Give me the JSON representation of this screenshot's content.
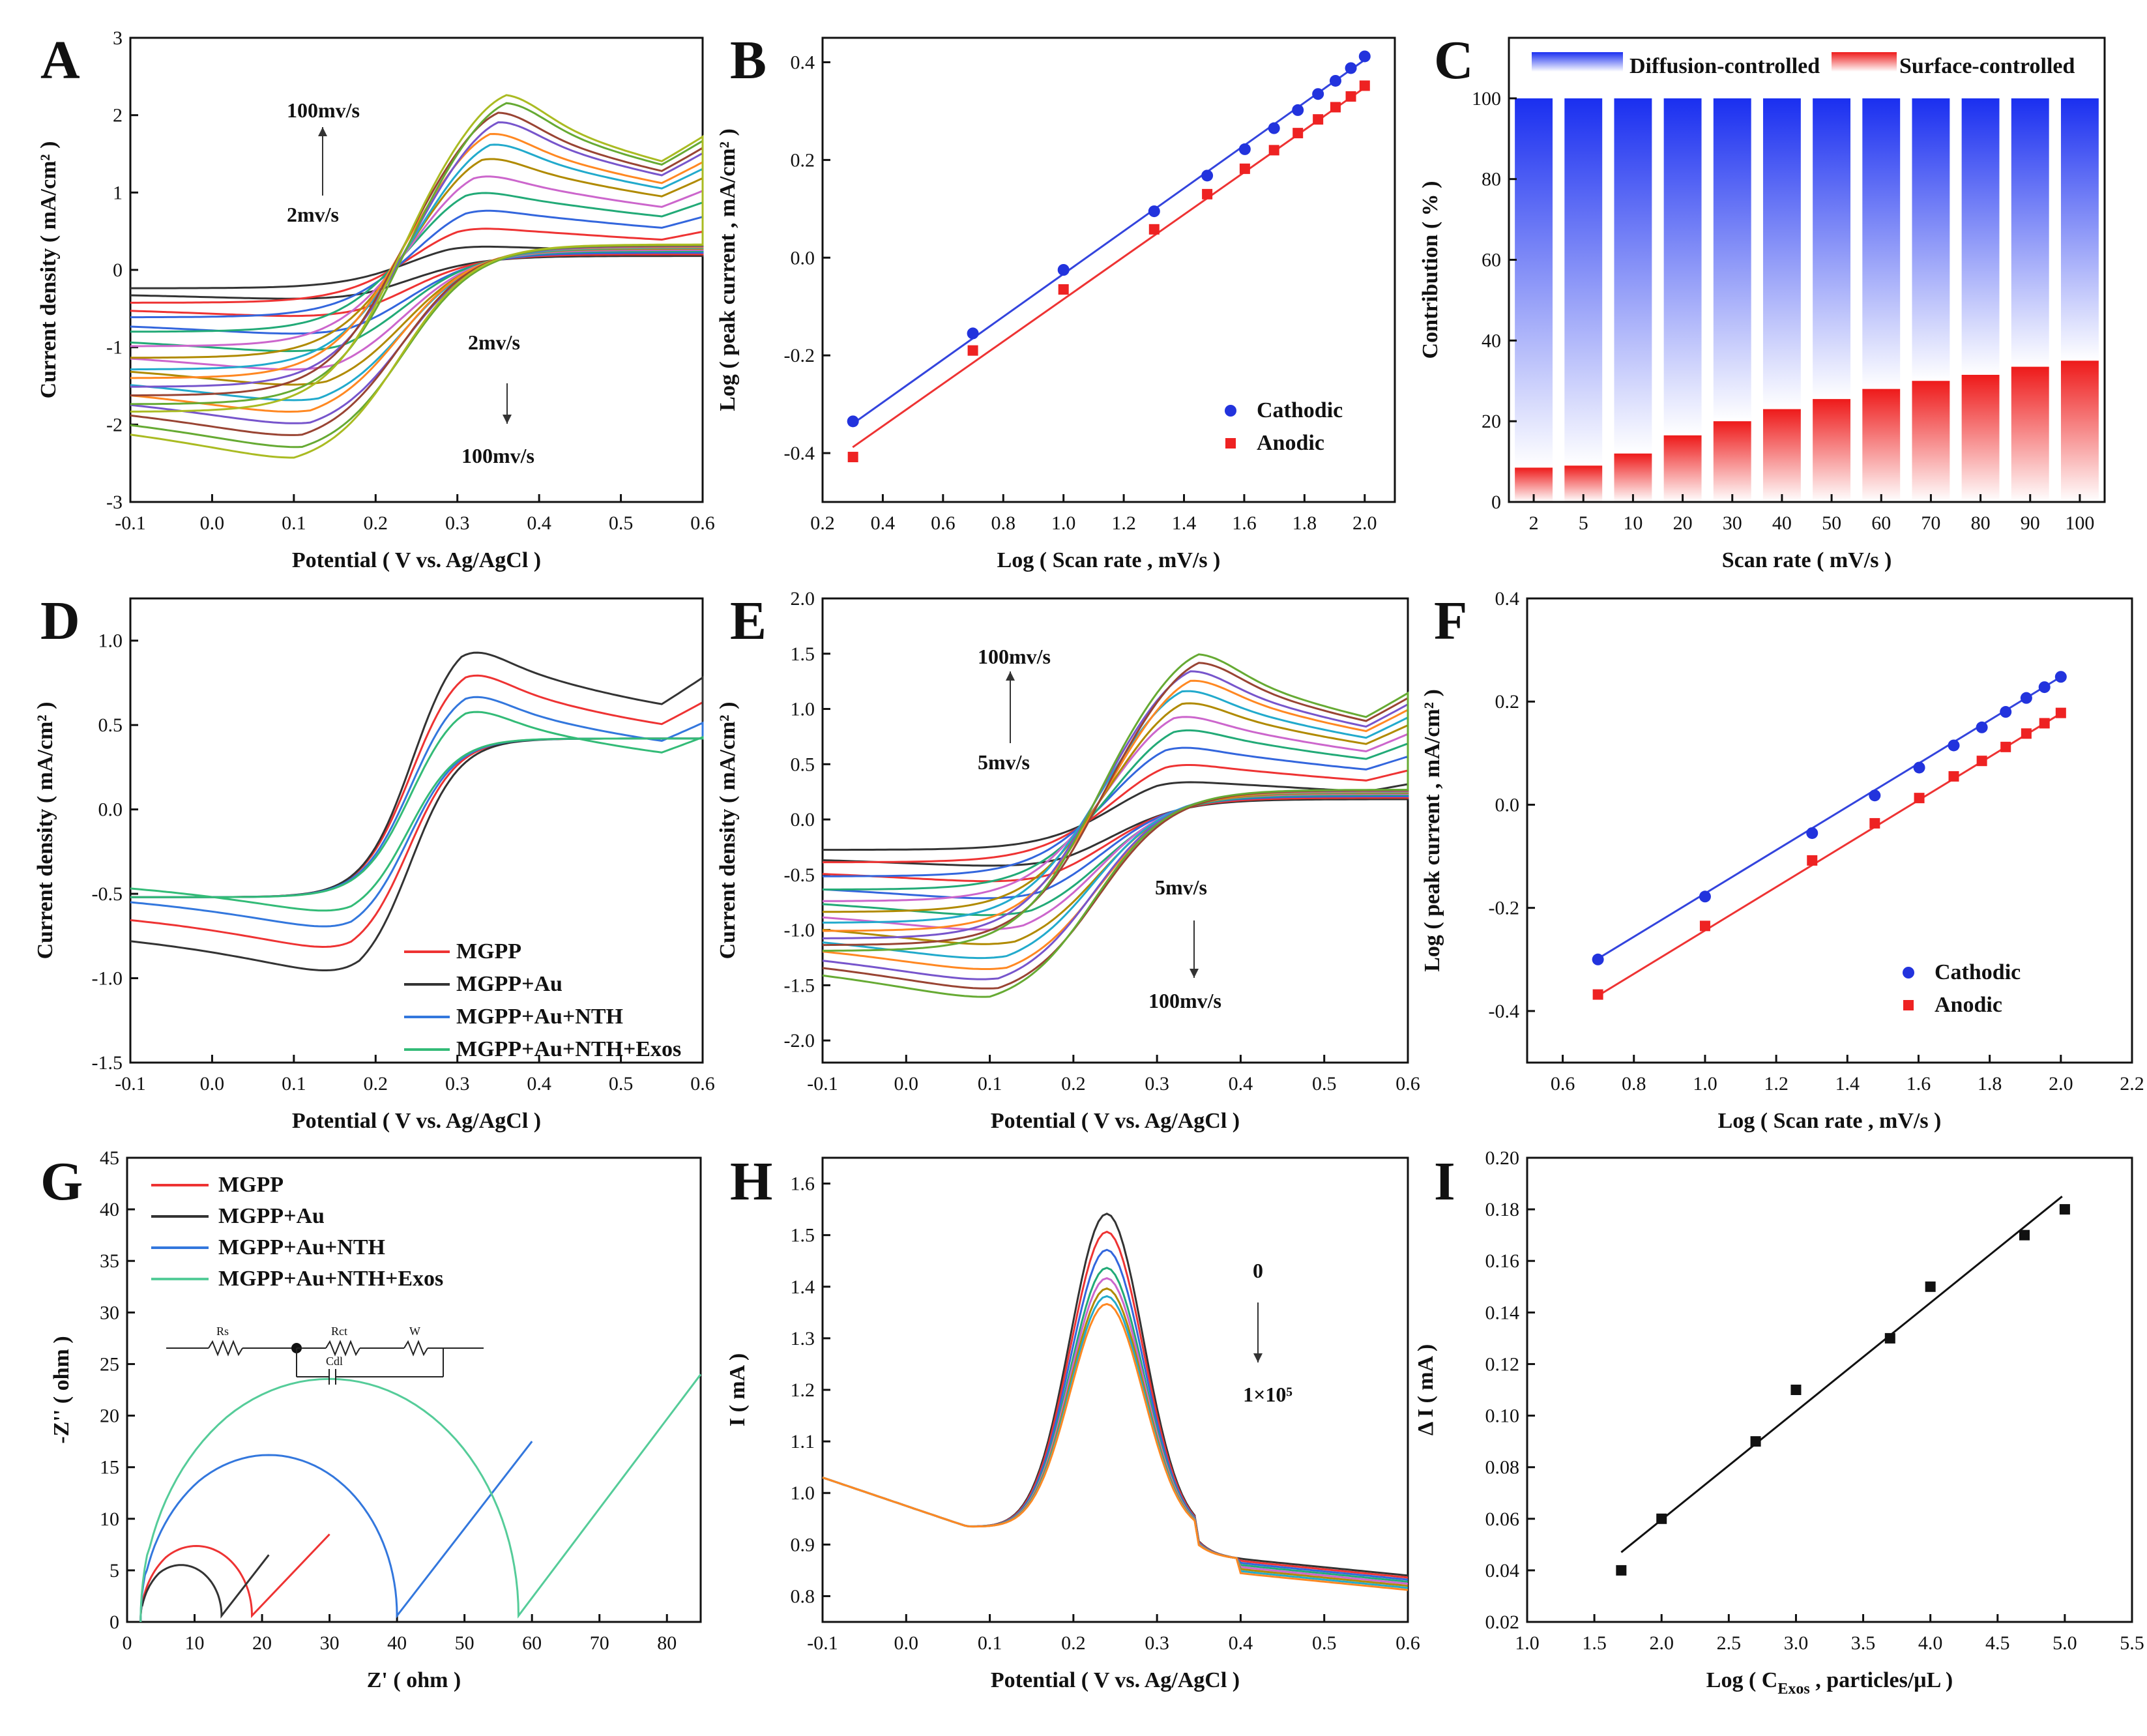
{
  "chart_data": [
    {
      "panel": "A",
      "type": "line",
      "xlabel": "Potential ( V vs. Ag/AgCl )",
      "ylabel": "Current density ( mA/cm² )",
      "xlim": [
        -0.1,
        0.6
      ],
      "ylim": [
        -3,
        3
      ],
      "xticks": [
        "-0.1",
        "0.0",
        "0.1",
        "0.2",
        "0.3",
        "0.4",
        "0.5",
        "0.6"
      ],
      "yticks": [
        "-3",
        "-2",
        "-1",
        "0",
        "1",
        "2",
        "3"
      ],
      "cv_series": {
        "count": 12,
        "peak_potential_ox": [
          0.29,
          0.3,
          0.31,
          0.31,
          0.32,
          0.33,
          0.34,
          0.34,
          0.35,
          0.35,
          0.36,
          0.36
        ],
        "peak_current_ox": [
          0.38,
          0.65,
          0.9,
          1.15,
          1.35,
          1.55,
          1.7,
          1.82,
          1.95,
          2.05,
          2.15,
          2.23
        ],
        "peak_potential_red": [
          0.19,
          0.18,
          0.17,
          0.16,
          0.15,
          0.14,
          0.13,
          0.12,
          0.12,
          0.11,
          0.11,
          0.1
        ],
        "peak_current_red": [
          -0.45,
          -0.7,
          -0.95,
          -1.2,
          -1.45,
          -1.65,
          -1.85,
          -2.0,
          -2.15,
          -2.3,
          -2.45,
          -2.58
        ],
        "colors": [
          "#333333",
          "#ee3333",
          "#3366dd",
          "#22aa77",
          "#cc66cc",
          "#b08a00",
          "#22aacc",
          "#ff8822",
          "#7755cc",
          "#994433",
          "#66aa33",
          "#aabb22"
        ]
      },
      "annotations": [
        {
          "text": "100mv/s"
        },
        {
          "text": "2mv/s"
        },
        {
          "text": "2mv/s"
        },
        {
          "text": "100mv/s"
        }
      ]
    },
    {
      "panel": "B",
      "type": "scatter",
      "xlabel": "Log ( Scan rate , mV/s )",
      "ylabel": "Log ( peak current , mA/cm² )",
      "xlim": [
        0.2,
        2.1
      ],
      "ylim": [
        -0.5,
        0.45
      ],
      "xticks": [
        "0.2",
        "0.4",
        "0.6",
        "0.8",
        "1.0",
        "1.2",
        "1.4",
        "1.6",
        "1.8",
        "2.0"
      ],
      "yticks": [
        "-0.4",
        "-0.2",
        "0.0",
        "0.2",
        "0.4"
      ],
      "series": [
        {
          "name": "Cathodic",
          "color": "#2233dd",
          "marker": "circle",
          "x": [
            0.301,
            0.699,
            1.0,
            1.301,
            1.477,
            1.602,
            1.699,
            1.778,
            1.845,
            1.903,
            1.954,
            2.0
          ],
          "y": [
            -0.335,
            -0.155,
            -0.025,
            0.095,
            0.168,
            0.222,
            0.265,
            0.302,
            0.335,
            0.362,
            0.388,
            0.412
          ]
        },
        {
          "name": "Anodic",
          "color": "#ee2222",
          "marker": "square",
          "x": [
            0.301,
            0.699,
            1.0,
            1.301,
            1.477,
            1.602,
            1.699,
            1.778,
            1.845,
            1.903,
            1.954,
            2.0
          ],
          "y": [
            -0.408,
            -0.19,
            -0.065,
            0.058,
            0.13,
            0.182,
            0.22,
            0.255,
            0.283,
            0.308,
            0.33,
            0.352
          ]
        }
      ],
      "fits": [
        {
          "color": "#3344dd",
          "x": [
            0.3,
            2.0
          ],
          "y": [
            -0.34,
            0.405
          ]
        },
        {
          "color": "#ee3333",
          "x": [
            0.3,
            2.0
          ],
          "y": [
            -0.388,
            0.348
          ]
        }
      ]
    },
    {
      "panel": "C",
      "type": "bar",
      "xlabel": "Scan rate ( mV/s )",
      "ylabel": "Contribution ( % )",
      "ylim": [
        0,
        115
      ],
      "yticks": [
        "0",
        "20",
        "40",
        "60",
        "80",
        "100"
      ],
      "categories": [
        "2",
        "5",
        "10",
        "20",
        "30",
        "40",
        "50",
        "60",
        "70",
        "80",
        "90",
        "100"
      ],
      "series": [
        {
          "name": "Diffusion-controlled",
          "color": "#2233ee",
          "values": [
            91.5,
            91,
            88,
            83.5,
            80,
            77,
            74.5,
            72,
            70,
            68.5,
            66.5,
            65
          ]
        },
        {
          "name": "Surface-controlled",
          "color": "#ee2222",
          "values": [
            8.5,
            9,
            12,
            16.5,
            20,
            23,
            25.5,
            28,
            30,
            31.5,
            33.5,
            35
          ]
        }
      ]
    },
    {
      "panel": "D",
      "type": "line",
      "xlabel": "Potential ( V vs. Ag/AgCl )",
      "ylabel": "Current density ( mA/cm² )",
      "xlim": [
        -0.1,
        0.6
      ],
      "ylim": [
        -1.5,
        1.25
      ],
      "xticks": [
        "-0.1",
        "0.0",
        "0.1",
        "0.2",
        "0.3",
        "0.4",
        "0.5",
        "0.6"
      ],
      "yticks": [
        "-1.5",
        "-1.0",
        "-0.5",
        "0.0",
        "0.5",
        "1.0"
      ],
      "series": [
        {
          "name": "MGPP",
          "color": "#ee3333",
          "peak_ox": [
            0.31,
            0.82
          ],
          "peak_red": [
            0.17,
            -0.9
          ]
        },
        {
          "name": "MGPP+Au",
          "color": "#333333",
          "peak_ox": [
            0.305,
            0.98
          ],
          "peak_red": [
            0.18,
            -1.06
          ]
        },
        {
          "name": "MGPP+Au+NTH",
          "color": "#3377dd",
          "peak_ox": [
            0.31,
            0.69
          ],
          "peak_red": [
            0.17,
            -0.77
          ]
        },
        {
          "name": "MGPP+Au+NTH+Exos",
          "color": "#33bb77",
          "peak_ox": [
            0.31,
            0.6
          ],
          "peak_red": [
            0.17,
            -0.67
          ]
        }
      ]
    },
    {
      "panel": "E",
      "type": "line",
      "xlabel": "Potential ( V vs. Ag/AgCl )",
      "ylabel": "Current density ( mA/cm² )",
      "xlim": [
        -0.1,
        0.6
      ],
      "ylim": [
        -2.2,
        2.0
      ],
      "xticks": [
        "-0.1",
        "0.0",
        "0.1",
        "0.2",
        "0.3",
        "0.4",
        "0.5",
        "0.6"
      ],
      "yticks": [
        "-2.0",
        "-1.5",
        "-1.0",
        "-0.5",
        "0.0",
        "0.5",
        "1.0",
        "1.5",
        "2.0"
      ],
      "cv_series": {
        "count": 11,
        "peak_potential_ox": [
          0.3,
          0.31,
          0.31,
          0.32,
          0.32,
          0.33,
          0.33,
          0.34,
          0.34,
          0.35,
          0.35
        ],
        "peak_current_ox": [
          0.42,
          0.58,
          0.75,
          0.9,
          1.02,
          1.12,
          1.22,
          1.3,
          1.37,
          1.43,
          1.49
        ],
        "peak_potential_red": [
          0.19,
          0.17,
          0.16,
          0.15,
          0.14,
          0.13,
          0.12,
          0.12,
          0.11,
          0.11,
          0.1
        ],
        "peak_current_red": [
          -0.5,
          -0.65,
          -0.82,
          -0.98,
          -1.12,
          -1.25,
          -1.38,
          -1.48,
          -1.57,
          -1.65,
          -1.72
        ],
        "colors": [
          "#333333",
          "#ee3333",
          "#3366dd",
          "#22aa77",
          "#cc66cc",
          "#b08a00",
          "#22aacc",
          "#ff8822",
          "#7755cc",
          "#994433",
          "#66aa33"
        ]
      },
      "annotations": [
        {
          "text": "100mv/s"
        },
        {
          "text": "5mv/s"
        },
        {
          "text": "5mv/s"
        },
        {
          "text": "100mv/s"
        }
      ]
    },
    {
      "panel": "F",
      "type": "scatter",
      "xlabel": "Log ( Scan rate , mV/s )",
      "ylabel": "Log ( peak current , mA/cm² )",
      "xlim": [
        0.5,
        2.2
      ],
      "ylim": [
        -0.5,
        0.4
      ],
      "xticks": [
        "0.6",
        "0.8",
        "1.0",
        "1.2",
        "1.4",
        "1.6",
        "1.8",
        "2.0",
        "2.2"
      ],
      "yticks": [
        "-0.4",
        "-0.2",
        "0.0",
        "0.2",
        "0.4"
      ],
      "series": [
        {
          "name": "Cathodic",
          "color": "#2233dd",
          "marker": "circle",
          "x": [
            0.699,
            1.0,
            1.301,
            1.477,
            1.602,
            1.699,
            1.778,
            1.845,
            1.903,
            1.954,
            2.0
          ],
          "y": [
            -0.3,
            -0.178,
            -0.055,
            0.018,
            0.072,
            0.115,
            0.15,
            0.18,
            0.207,
            0.228,
            0.248
          ]
        },
        {
          "name": "Anodic",
          "color": "#ee2222",
          "marker": "square",
          "x": [
            0.699,
            1.0,
            1.301,
            1.477,
            1.602,
            1.699,
            1.778,
            1.845,
            1.903,
            1.954,
            2.0
          ],
          "y": [
            -0.368,
            -0.235,
            -0.108,
            -0.036,
            0.013,
            0.055,
            0.085,
            0.112,
            0.138,
            0.158,
            0.178
          ]
        }
      ],
      "fits": [
        {
          "color": "#3344dd",
          "x": [
            0.7,
            2.0
          ],
          "y": [
            -0.298,
            0.248
          ]
        },
        {
          "color": "#ee3333",
          "x": [
            0.7,
            2.0
          ],
          "y": [
            -0.37,
            0.177
          ]
        }
      ]
    },
    {
      "panel": "G",
      "type": "line",
      "xlabel": "Z' ( ohm )",
      "ylabel": "-Z'' ( ohm )",
      "xlim": [
        0,
        85
      ],
      "ylim": [
        0,
        45
      ],
      "xticks": [
        "0",
        "10",
        "20",
        "30",
        "40",
        "50",
        "60",
        "70",
        "80"
      ],
      "yticks": [
        "0",
        "5",
        "10",
        "15",
        "20",
        "25",
        "30",
        "35",
        "40",
        "45"
      ],
      "series": [
        {
          "name": "MGPP",
          "color": "#ee3333",
          "Rs": 2,
          "Rct": 16.5,
          "tail_end": [
            30,
            8.5
          ]
        },
        {
          "name": "MGPP+Au",
          "color": "#333333",
          "Rs": 2,
          "Rct": 12,
          "tail_end": [
            21,
            6.5
          ]
        },
        {
          "name": "MGPP+Au+NTH",
          "color": "#3377dd",
          "Rs": 2,
          "Rct": 38,
          "tail_end": [
            60,
            17.5
          ]
        },
        {
          "name": "MGPP+Au+NTH+Exos",
          "color": "#55cc99",
          "Rs": 2,
          "Rct": 56,
          "tail_end": [
            85,
            24
          ]
        }
      ],
      "circuit_labels": [
        "Rs",
        "Rct",
        "W",
        "Cdl"
      ]
    },
    {
      "panel": "H",
      "type": "line",
      "xlabel": "Potential ( V vs. Ag/AgCl )",
      "ylabel": "I ( mA )",
      "xlim": [
        -0.1,
        0.6
      ],
      "ylim": [
        0.75,
        1.65
      ],
      "xticks": [
        "-0.1",
        "0.0",
        "0.1",
        "0.2",
        "0.3",
        "0.4",
        "0.5",
        "0.6"
      ],
      "yticks": [
        "0.8",
        "0.9",
        "1.0",
        "1.1",
        "1.2",
        "1.3",
        "1.4",
        "1.5",
        "1.6"
      ],
      "peak_potential": 0.24,
      "peak_currents": [
        1.545,
        1.51,
        1.475,
        1.44,
        1.42,
        1.4,
        1.385,
        1.37
      ],
      "colors": [
        "#333333",
        "#ee3333",
        "#3366dd",
        "#22aa77",
        "#cc66cc",
        "#b08a00",
        "#22aacc",
        "#ff8822"
      ],
      "annotations": [
        {
          "text": "0"
        },
        {
          "text": "1×10⁵"
        }
      ]
    },
    {
      "panel": "I",
      "type": "scatter",
      "xlabel": "Log ( Cₑₓₒₛ , particles/μL )",
      "xlabel_main": "Log ( C",
      "xlabel_sub": "Exos",
      "xlabel_tail": " , particles/μL )",
      "ylabel": "Δ I ( mA )",
      "xlim": [
        1.0,
        5.5
      ],
      "ylim": [
        0.02,
        0.2
      ],
      "xticks": [
        "1.0",
        "1.5",
        "2.0",
        "2.5",
        "3.0",
        "3.5",
        "4.0",
        "4.5",
        "5.0",
        "5.5"
      ],
      "yticks": [
        "0.02",
        "0.04",
        "0.06",
        "0.08",
        "0.10",
        "0.12",
        "0.14",
        "0.16",
        "0.18",
        "0.20"
      ],
      "series": [
        {
          "name": "ΔI",
          "color": "#111111",
          "marker": "square",
          "x": [
            1.7,
            2.0,
            2.7,
            3.0,
            3.7,
            4.0,
            4.7,
            5.0
          ],
          "y": [
            0.04,
            0.06,
            0.09,
            0.11,
            0.13,
            0.15,
            0.17,
            0.18
          ]
        }
      ],
      "fits": [
        {
          "color": "#111111",
          "x": [
            1.7,
            4.98
          ],
          "y": [
            0.047,
            0.185
          ]
        }
      ]
    }
  ]
}
